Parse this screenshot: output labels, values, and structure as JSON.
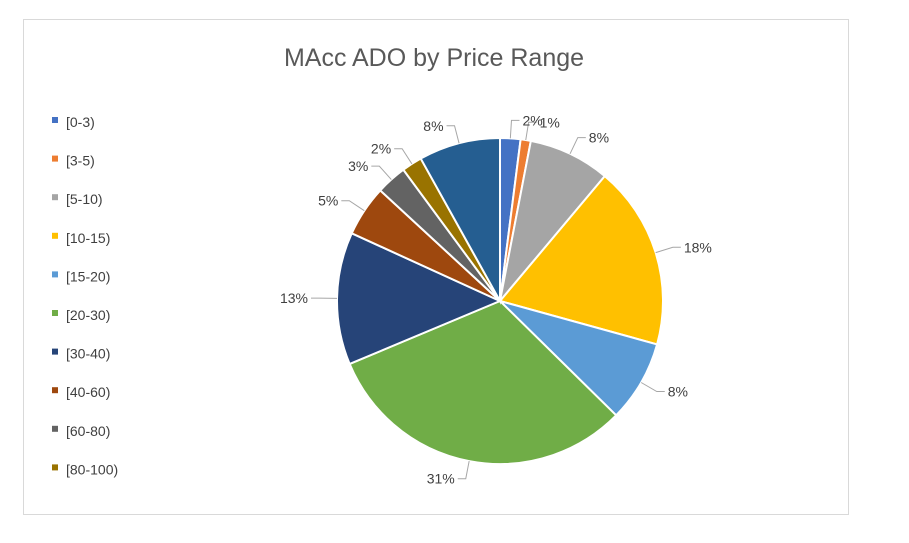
{
  "chart_data": {
    "type": "pie",
    "title": "MAcc ADO by Price Range",
    "legend_position": "left",
    "start_angle": "12 o'clock, clockwise",
    "categories": [
      "[0-3)",
      "[3-5)",
      "[5-10)",
      "[10-15)",
      "[15-20)",
      "[20-30)",
      "[30-40)",
      "[40-60)",
      "[60-80)",
      "[80-100)",
      ""
    ],
    "values": [
      2,
      1,
      8,
      18,
      8,
      31,
      13,
      5,
      3,
      2,
      8
    ],
    "labels": [
      "2%",
      "1%",
      "8%",
      "18%",
      "8%",
      "31%",
      "13%",
      "5%",
      "3%",
      "2%",
      "8%"
    ],
    "colors": [
      "#4472c4",
      "#ed7d31",
      "#a5a5a5",
      "#ffc000",
      "#5b9bd5",
      "#70ad47",
      "#264478",
      "#9e480e",
      "#636363",
      "#997300",
      "#255e91"
    ],
    "legend_entries": 10
  }
}
